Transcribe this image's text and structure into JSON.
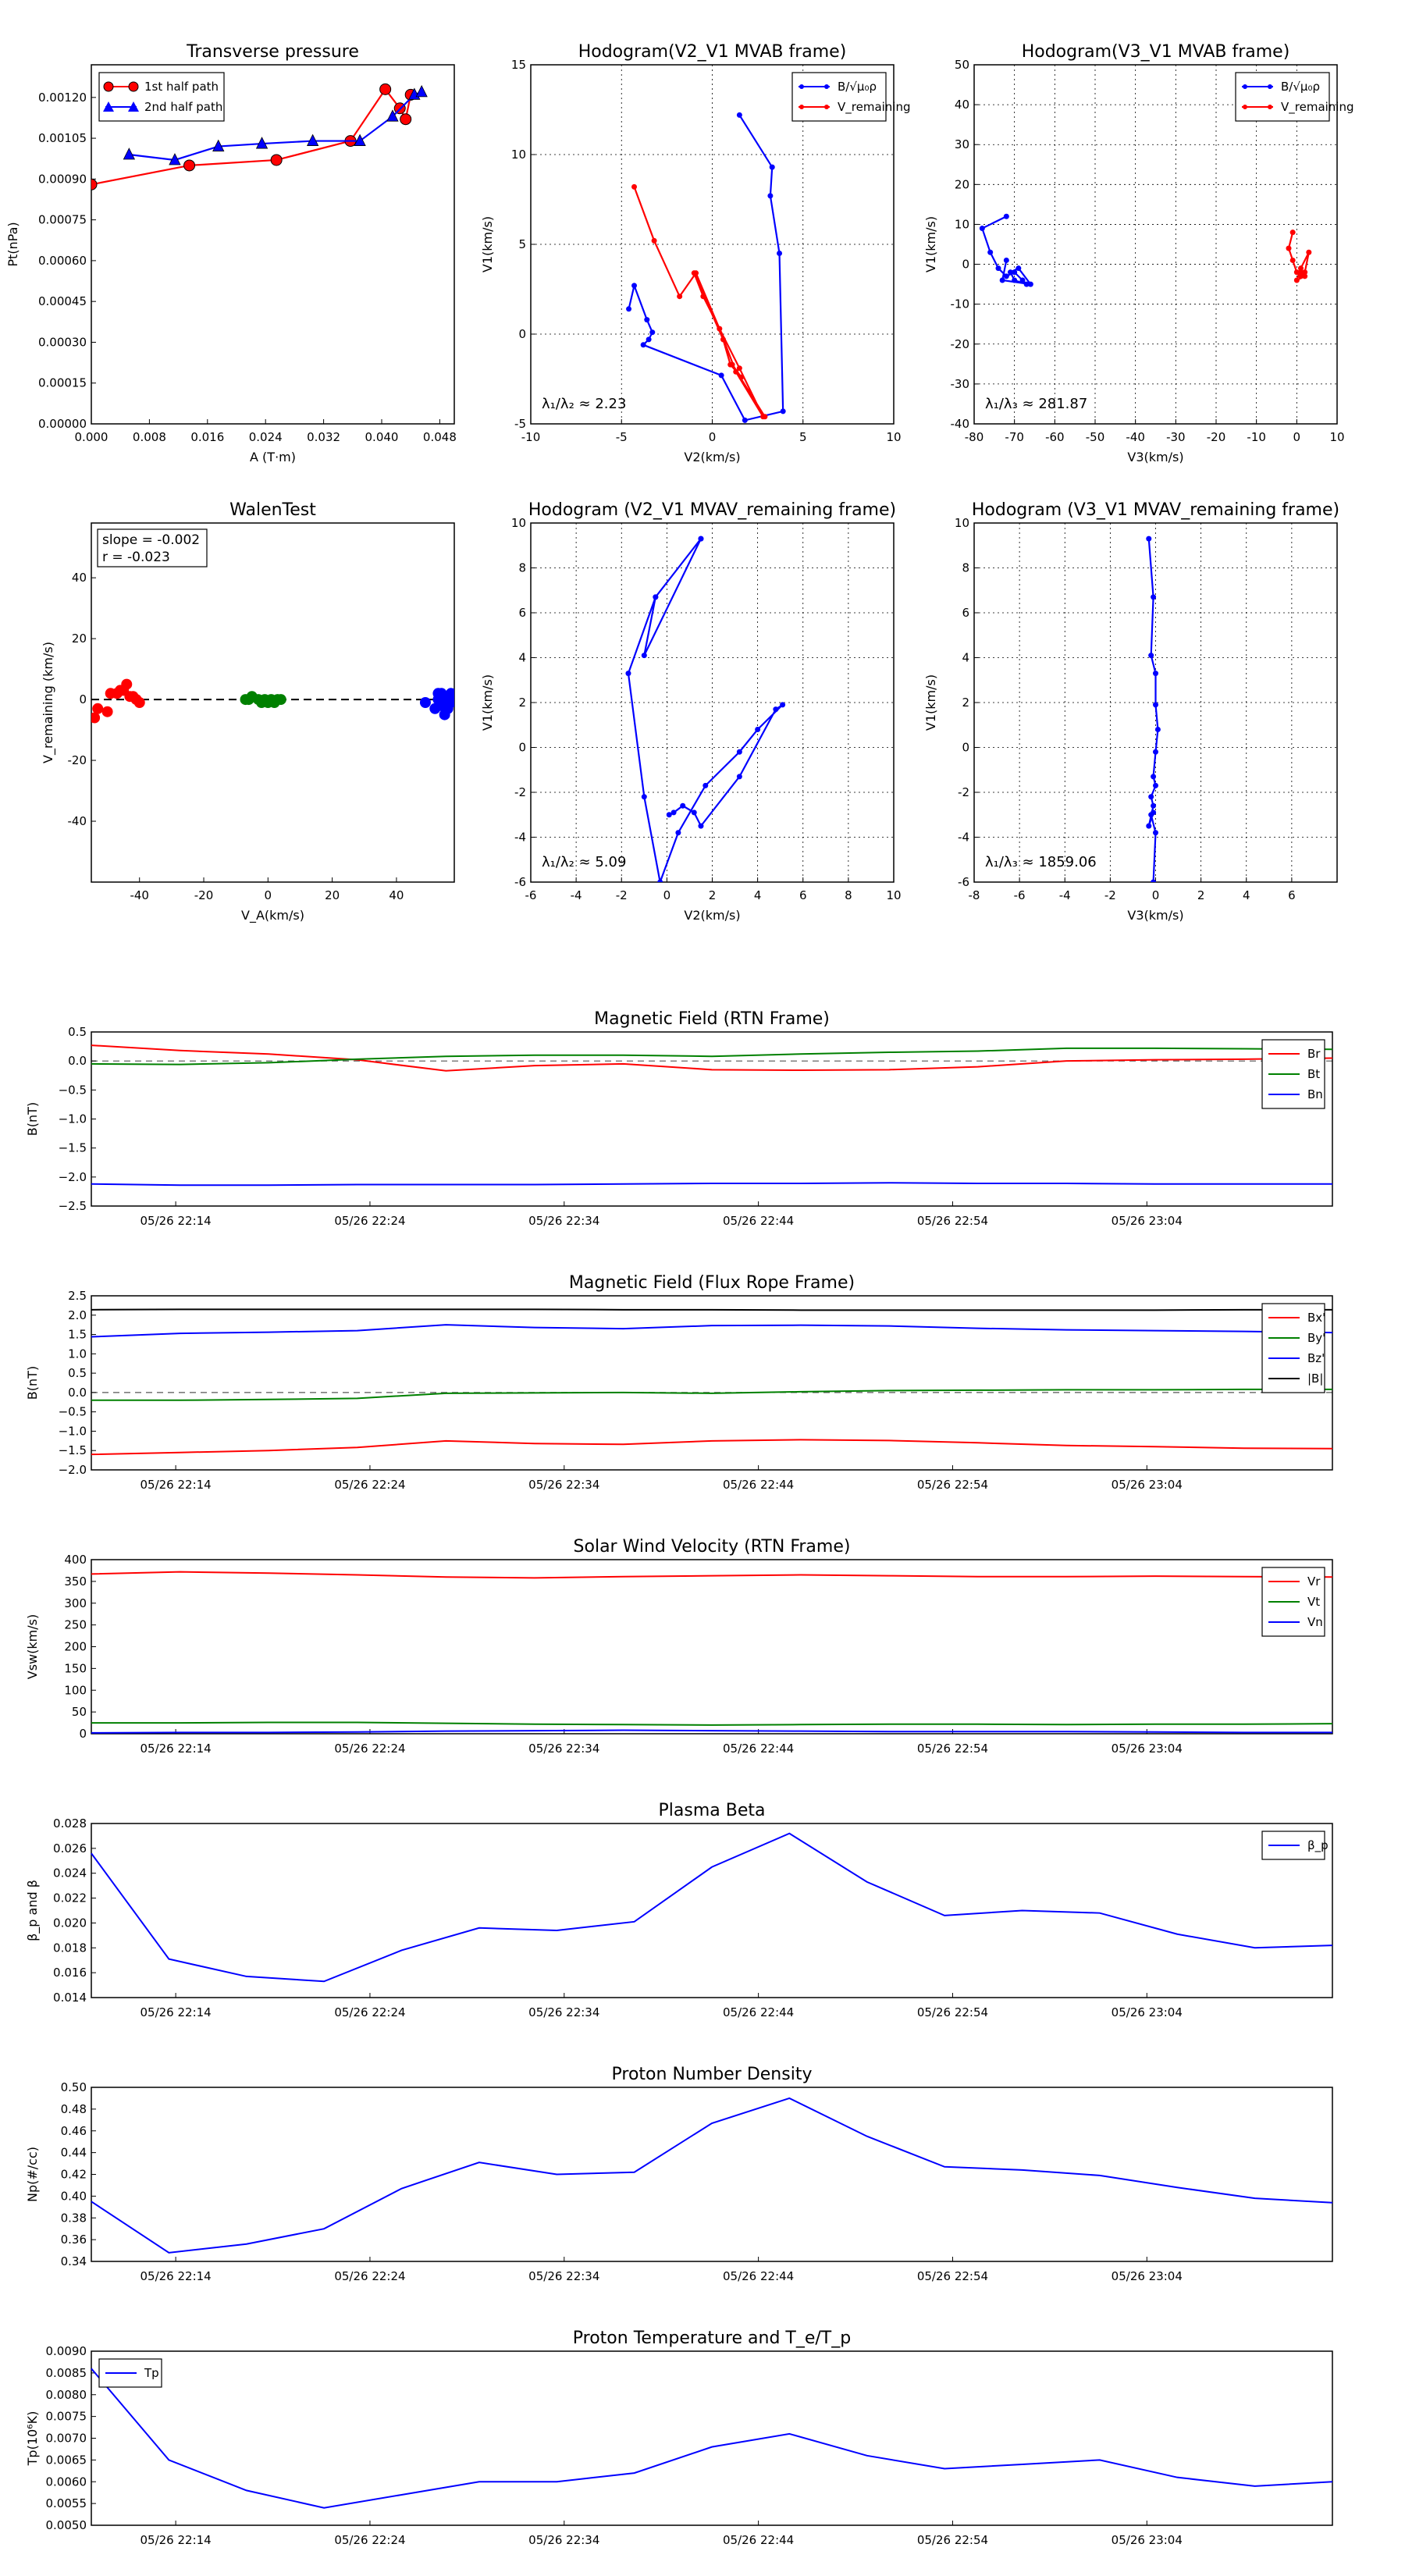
{
  "chart_data": [
    {
      "id": "transverse",
      "type": "scatter",
      "title": "Transverse pressure",
      "xlabel": "A (T·m)",
      "ylabel": "Pt(nPa)",
      "xlim": [
        0.0,
        0.05
      ],
      "ylim": [
        0.0,
        0.00132
      ],
      "xticks": [
        0.0,
        0.008,
        0.016,
        0.024,
        0.032,
        0.04,
        0.048
      ],
      "xtick_labels": [
        "0.000",
        "0.008",
        "0.016",
        "0.024",
        "0.032",
        "0.040",
        "0.048"
      ],
      "yticks": [
        0,
        0.00015,
        0.0003,
        0.00045,
        0.0006,
        0.00075,
        0.0009,
        0.00105,
        0.0012
      ],
      "ytick_labels": [
        "0.00000",
        "0.00015",
        "0.00030",
        "0.00045",
        "0.00060",
        "0.00075",
        "0.00090",
        "0.00105",
        "0.00120"
      ],
      "legend": "top-left",
      "grid": false,
      "series": [
        {
          "name": "1st half path",
          "color": "#ff0000",
          "marker": "circle",
          "x": [
            0.0,
            0.0135,
            0.0255,
            0.0357,
            0.0405,
            0.0425,
            0.0433,
            0.044
          ],
          "y": [
            0.00088,
            0.00095,
            0.00097,
            0.00104,
            0.00123,
            0.00116,
            0.00112,
            0.00121
          ]
        },
        {
          "name": "2nd half path",
          "color": "#0000ff",
          "marker": "triangle",
          "x": [
            0.0052,
            0.0115,
            0.0175,
            0.0235,
            0.0305,
            0.037,
            0.0415,
            0.0445,
            0.0455
          ],
          "y": [
            0.00099,
            0.00097,
            0.00102,
            0.00103,
            0.00104,
            0.00104,
            0.00113,
            0.00121,
            0.00122
          ]
        }
      ]
    },
    {
      "id": "hodo1",
      "type": "line",
      "title": "Hodogram(V2_V1 MVAB frame)",
      "xlabel": "V2(km/s)",
      "ylabel": "V1(km/s)",
      "xlim": [
        -10,
        10
      ],
      "ylim": [
        -5,
        15
      ],
      "xticks": [
        -10,
        -5,
        0,
        5,
        10
      ],
      "yticks": [
        -5,
        0,
        5,
        10,
        15
      ],
      "grid": true,
      "legend": "top-right",
      "annotation": "λ₁/λ₂ ≈ 2.23",
      "series": [
        {
          "name": "B/√μ₀ρ",
          "color": "#0000ff",
          "x": [
            1.5,
            3.3,
            3.2,
            3.7,
            3.9,
            1.8,
            0.5,
            -3.8,
            -3.5,
            -3.3,
            -3.6,
            -4.3,
            -4.6
          ],
          "y": [
            12.2,
            9.3,
            7.7,
            4.5,
            -4.3,
            -4.8,
            -2.3,
            -0.6,
            -0.3,
            0.1,
            0.8,
            2.7,
            1.4
          ]
        },
        {
          "name": "V_remaining",
          "color": "#ff0000",
          "x": [
            -4.3,
            -3.2,
            -1.8,
            -0.9,
            0.4,
            1.3,
            2.8,
            1.5,
            -0.5,
            -1.0,
            0.6,
            1.0,
            1.6,
            1.1,
            2.9
          ],
          "y": [
            8.2,
            5.2,
            2.1,
            3.4,
            0.3,
            -2.1,
            -4.6,
            -1.9,
            2.1,
            3.4,
            -0.3,
            -1.7,
            -2.4,
            -1.7,
            -4.6
          ]
        }
      ]
    },
    {
      "id": "hodo2",
      "type": "line",
      "title": "Hodogram(V3_V1 MVAB frame)",
      "xlabel": "V3(km/s)",
      "ylabel": "V1(km/s)",
      "xlim": [
        -80,
        10
      ],
      "ylim": [
        -40,
        50
      ],
      "xticks": [
        -80,
        -70,
        -60,
        -50,
        -40,
        -30,
        -20,
        -10,
        0,
        10
      ],
      "yticks": [
        -40,
        -30,
        -20,
        -10,
        0,
        10,
        20,
        30,
        40,
        50
      ],
      "grid": true,
      "legend": "top-right",
      "annotation": "λ₁/λ₃ ≈ 281.87",
      "series": [
        {
          "name": "B/√μ₀ρ",
          "color": "#0000ff",
          "x": [
            -72,
            -78,
            -76,
            -74,
            -72,
            -70,
            -68,
            -67,
            -70,
            -71,
            -69,
            -66,
            -73,
            -72
          ],
          "y": [
            12,
            9,
            3,
            -1,
            -3,
            -2,
            -4,
            -5,
            -4,
            -2,
            -1,
            -5,
            -4,
            1
          ]
        },
        {
          "name": "V_remaining",
          "color": "#ff0000",
          "x": [
            -1,
            -2,
            -1,
            0,
            1,
            2,
            3,
            1,
            0,
            2,
            1
          ],
          "y": [
            8,
            4,
            1,
            -2,
            -3,
            -2,
            3,
            -1,
            -4,
            -3,
            -2
          ]
        }
      ]
    },
    {
      "id": "walen",
      "type": "scatter",
      "title": "WalenTest",
      "xlabel": "V_A(km/s)",
      "ylabel": "V_remaining (km/s)",
      "xlim": [
        -55,
        58
      ],
      "ylim": [
        -60,
        58
      ],
      "xticks": [
        -40,
        -20,
        0,
        20,
        40
      ],
      "yticks": [
        -40,
        -20,
        0,
        20,
        40
      ],
      "grid": false,
      "annotation_lines": [
        "slope = -0.002",
        "r = -0.023"
      ],
      "series": [
        {
          "color": "#ff0000",
          "x": [
            -54,
            -53,
            -50,
            -49,
            -47,
            -46,
            -45,
            -44,
            -43,
            -42,
            -41,
            -40
          ],
          "y": [
            -6,
            -3,
            -4,
            2,
            2,
            3,
            3,
            5,
            1,
            1,
            0,
            -1
          ]
        },
        {
          "color": "#008000",
          "x": [
            -7,
            -6,
            -5,
            -3,
            -2,
            -1,
            0,
            1,
            2,
            3,
            4
          ],
          "y": [
            0,
            0,
            1,
            0,
            -1,
            0,
            -1,
            0,
            -1,
            0,
            0
          ]
        },
        {
          "color": "#0000ff",
          "x": [
            49,
            52,
            53,
            54,
            54,
            55,
            55,
            56,
            56,
            57,
            57,
            53
          ],
          "y": [
            -1,
            -3,
            0,
            2,
            -2,
            1,
            -5,
            0,
            -3,
            2,
            -1,
            2
          ]
        }
      ],
      "ref_line_y": 0
    },
    {
      "id": "hodo3",
      "type": "line",
      "title": "Hodogram (V2_V1 MVAV_remaining frame)",
      "xlabel": "V2(km/s)",
      "ylabel": "V1(km/s)",
      "xlim": [
        -6,
        10
      ],
      "ylim": [
        -6,
        10
      ],
      "xticks": [
        -6,
        -4,
        -2,
        0,
        2,
        4,
        6,
        8,
        10
      ],
      "yticks": [
        -6,
        -4,
        -2,
        0,
        2,
        4,
        6,
        8,
        10
      ],
      "grid": true,
      "annotation": "λ₁/λ₂ ≈ 5.09",
      "series": [
        {
          "color": "#0000ff",
          "x": [
            1.5,
            -0.5,
            -1.0,
            1.5,
            -0.5,
            -1.7,
            -1.0,
            -0.3,
            0.5,
            1.7,
            3.2,
            4.0,
            5.1,
            4.8,
            3.2,
            1.5,
            1.2,
            0.7,
            0.3,
            0.1
          ],
          "y": [
            9.3,
            6.7,
            4.1,
            9.3,
            6.7,
            3.3,
            -2.2,
            -6.0,
            -3.8,
            -1.7,
            -0.2,
            0.8,
            1.9,
            1.7,
            -1.3,
            -3.5,
            -2.9,
            -2.6,
            -2.9,
            -3.0
          ]
        }
      ]
    },
    {
      "id": "hodo4",
      "type": "line",
      "title": "Hodogram (V3_V1 MVAV_remaining frame)",
      "xlabel": "V3(km/s)",
      "ylabel": "V1(km/s)",
      "xlim": [
        -8,
        8
      ],
      "ylim": [
        -6,
        10
      ],
      "xticks": [
        -8,
        -6,
        -4,
        -2,
        0,
        2,
        4,
        6
      ],
      "yticks": [
        -6,
        -4,
        -2,
        0,
        2,
        4,
        6,
        8,
        10
      ],
      "grid": true,
      "annotation": "λ₁/λ₃ ≈ 1859.06",
      "series": [
        {
          "color": "#0000ff",
          "x": [
            -0.3,
            -0.1,
            -0.2,
            0.0,
            0.0,
            0.1,
            0.0,
            -0.1,
            0.0,
            -0.2,
            -0.1,
            -0.3,
            -0.1,
            -0.2,
            0.0,
            -0.1
          ],
          "y": [
            9.3,
            6.7,
            4.1,
            3.3,
            1.9,
            0.8,
            -0.2,
            -1.3,
            -1.7,
            -2.2,
            -2.6,
            -3.5,
            -2.9,
            -3.0,
            -3.8,
            -6.0
          ]
        }
      ]
    },
    {
      "id": "mag_rtn",
      "type": "line",
      "title": "Magnetic Field (RTN Frame)",
      "ylabel": "B(nT)",
      "ylim": [
        -2.5,
        0.5
      ],
      "yticks": [
        -2.5,
        -2.0,
        -1.5,
        -1.0,
        -0.5,
        0.0,
        0.5
      ],
      "ytick_labels": [
        "−2.5",
        "−2.0",
        "−1.5",
        "−1.0",
        "−0.5",
        "0.0",
        "0.5"
      ],
      "time_ticks": [
        "05/26 22:14",
        "05/26 22:24",
        "05/26 22:34",
        "05/26 22:44",
        "05/26 22:54",
        "05/26 23:04"
      ],
      "ref_line_y": 0,
      "legend": "top-right",
      "series": [
        {
          "name": "Br",
          "color": "#ff0000",
          "values": [
            0.27,
            0.18,
            0.12,
            0.02,
            -0.17,
            -0.08,
            -0.05,
            -0.15,
            -0.16,
            -0.15,
            -0.1,
            0.0,
            0.02,
            0.03,
            0.05
          ]
        },
        {
          "name": "Bt",
          "color": "#008000",
          "values": [
            -0.05,
            -0.06,
            -0.03,
            0.03,
            0.08,
            0.1,
            0.1,
            0.08,
            0.12,
            0.15,
            0.17,
            0.22,
            0.22,
            0.21,
            0.2
          ]
        },
        {
          "name": "Bn",
          "color": "#0000ff",
          "values": [
            -2.12,
            -2.14,
            -2.14,
            -2.13,
            -2.13,
            -2.13,
            -2.12,
            -2.11,
            -2.11,
            -2.1,
            -2.11,
            -2.11,
            -2.12,
            -2.12,
            -2.12
          ]
        }
      ]
    },
    {
      "id": "mag_fr",
      "type": "line",
      "title": "Magnetic Field (Flux Rope Frame)",
      "ylabel": "B(nT)",
      "ylim": [
        -2.0,
        2.5
      ],
      "yticks": [
        -2.0,
        -1.5,
        -1.0,
        -0.5,
        0.0,
        0.5,
        1.0,
        1.5,
        2.0,
        2.5
      ],
      "ytick_labels": [
        "−2.0",
        "−1.5",
        "−1.0",
        "−0.5",
        "0.0",
        "0.5",
        "1.0",
        "1.5",
        "2.0",
        "2.5"
      ],
      "time_ticks": [
        "05/26 22:14",
        "05/26 22:24",
        "05/26 22:34",
        "05/26 22:44",
        "05/26 22:54",
        "05/26 23:04"
      ],
      "ref_line_y": 0,
      "legend": "top-right",
      "series": [
        {
          "name": "Bx'",
          "color": "#ff0000",
          "values": [
            -1.6,
            -1.55,
            -1.5,
            -1.42,
            -1.25,
            -1.32,
            -1.34,
            -1.25,
            -1.22,
            -1.24,
            -1.3,
            -1.37,
            -1.4,
            -1.44,
            -1.45
          ]
        },
        {
          "name": "By'",
          "color": "#008000",
          "values": [
            -0.2,
            -0.2,
            -0.18,
            -0.15,
            -0.02,
            -0.01,
            0.0,
            -0.02,
            0.02,
            0.05,
            0.06,
            0.07,
            0.07,
            0.08,
            0.08
          ]
        },
        {
          "name": "Bz'",
          "color": "#0000ff",
          "values": [
            1.44,
            1.53,
            1.56,
            1.6,
            1.75,
            1.68,
            1.65,
            1.73,
            1.74,
            1.72,
            1.66,
            1.62,
            1.6,
            1.58,
            1.55
          ]
        },
        {
          "name": "|B|",
          "color": "#000000",
          "values": [
            2.14,
            2.15,
            2.15,
            2.15,
            2.15,
            2.15,
            2.14,
            2.14,
            2.13,
            2.13,
            2.13,
            2.13,
            2.13,
            2.14,
            2.14
          ]
        }
      ]
    },
    {
      "id": "vel",
      "type": "line",
      "title": "Solar Wind Velocity (RTN Frame)",
      "ylabel": "Vsw(km/s)",
      "ylim": [
        0,
        400
      ],
      "yticks": [
        0,
        50,
        100,
        150,
        200,
        250,
        300,
        350,
        400
      ],
      "time_ticks": [
        "05/26 22:14",
        "05/26 22:24",
        "05/26 22:34",
        "05/26 22:44",
        "05/26 22:54",
        "05/26 23:04"
      ],
      "legend": "top-right",
      "series": [
        {
          "name": "Vr",
          "color": "#ff0000",
          "values": [
            367,
            372,
            369,
            365,
            360,
            358,
            361,
            363,
            365,
            363,
            361,
            361,
            362,
            361,
            360
          ]
        },
        {
          "name": "Vt",
          "color": "#008000",
          "values": [
            25,
            25,
            26,
            26,
            24,
            22,
            21,
            20,
            21,
            22,
            22,
            21,
            22,
            22,
            23
          ]
        },
        {
          "name": "Vn",
          "color": "#0000ff",
          "values": [
            2,
            3,
            3,
            4,
            6,
            7,
            8,
            7,
            6,
            5,
            5,
            5,
            4,
            3,
            3
          ]
        }
      ]
    },
    {
      "id": "beta",
      "type": "line",
      "title": "Plasma Beta",
      "ylabel": "β_p and β",
      "ylim": [
        0.014,
        0.028
      ],
      "yticks": [
        0.014,
        0.016,
        0.018,
        0.02,
        0.022,
        0.024,
        0.026,
        0.028
      ],
      "ytick_labels": [
        "0.014",
        "0.016",
        "0.018",
        "0.020",
        "0.022",
        "0.024",
        "0.026",
        "0.028"
      ],
      "time_ticks": [
        "05/26 22:14",
        "05/26 22:24",
        "05/26 22:34",
        "05/26 22:44",
        "05/26 22:54",
        "05/26 23:04"
      ],
      "legend": "top-right",
      "series": [
        {
          "name": "β_p",
          "color": "#0000ff",
          "values": [
            0.0256,
            0.0171,
            0.0157,
            0.0153,
            0.0178,
            0.0196,
            0.0194,
            0.0201,
            0.0245,
            0.0272,
            0.0233,
            0.0206,
            0.021,
            0.0208,
            0.0191,
            0.018,
            0.0182
          ]
        }
      ]
    },
    {
      "id": "density",
      "type": "line",
      "title": "Proton Number Density",
      "ylabel": "Np(#/cc)",
      "ylim": [
        0.34,
        0.5
      ],
      "yticks": [
        0.34,
        0.36,
        0.38,
        0.4,
        0.42,
        0.44,
        0.46,
        0.48,
        0.5
      ],
      "ytick_labels": [
        "0.34",
        "0.36",
        "0.38",
        "0.40",
        "0.42",
        "0.44",
        "0.46",
        "0.48",
        "0.50"
      ],
      "time_ticks": [
        "05/26 22:14",
        "05/26 22:24",
        "05/26 22:34",
        "05/26 22:44",
        "05/26 22:54",
        "05/26 23:04"
      ],
      "series": [
        {
          "color": "#0000ff",
          "values": [
            0.395,
            0.348,
            0.356,
            0.37,
            0.407,
            0.431,
            0.42,
            0.422,
            0.467,
            0.49,
            0.455,
            0.427,
            0.424,
            0.419,
            0.408,
            0.398,
            0.394
          ]
        }
      ]
    },
    {
      "id": "temp",
      "type": "line",
      "title": "Proton Temperature and T_e/T_p",
      "ylabel": "Tp(10⁶K)",
      "ylim": [
        0.005,
        0.009
      ],
      "yticks": [
        0.005,
        0.0055,
        0.006,
        0.0065,
        0.007,
        0.0075,
        0.008,
        0.0085,
        0.009
      ],
      "ytick_labels": [
        "0.0050",
        "0.0055",
        "0.0060",
        "0.0065",
        "0.0070",
        "0.0075",
        "0.0080",
        "0.0085",
        "0.0090"
      ],
      "time_ticks": [
        "05/26 22:14",
        "05/26 22:24",
        "05/26 22:34",
        "05/26 22:44",
        "05/26 22:54",
        "05/26 23:04"
      ],
      "legend": "top-left",
      "series": [
        {
          "name": "Tp",
          "color": "#0000ff",
          "values": [
            0.0086,
            0.0065,
            0.0058,
            0.0054,
            0.0057,
            0.006,
            0.006,
            0.0062,
            0.0068,
            0.0071,
            0.0066,
            0.0063,
            0.0064,
            0.0065,
            0.0061,
            0.0059,
            0.006
          ]
        }
      ]
    }
  ]
}
